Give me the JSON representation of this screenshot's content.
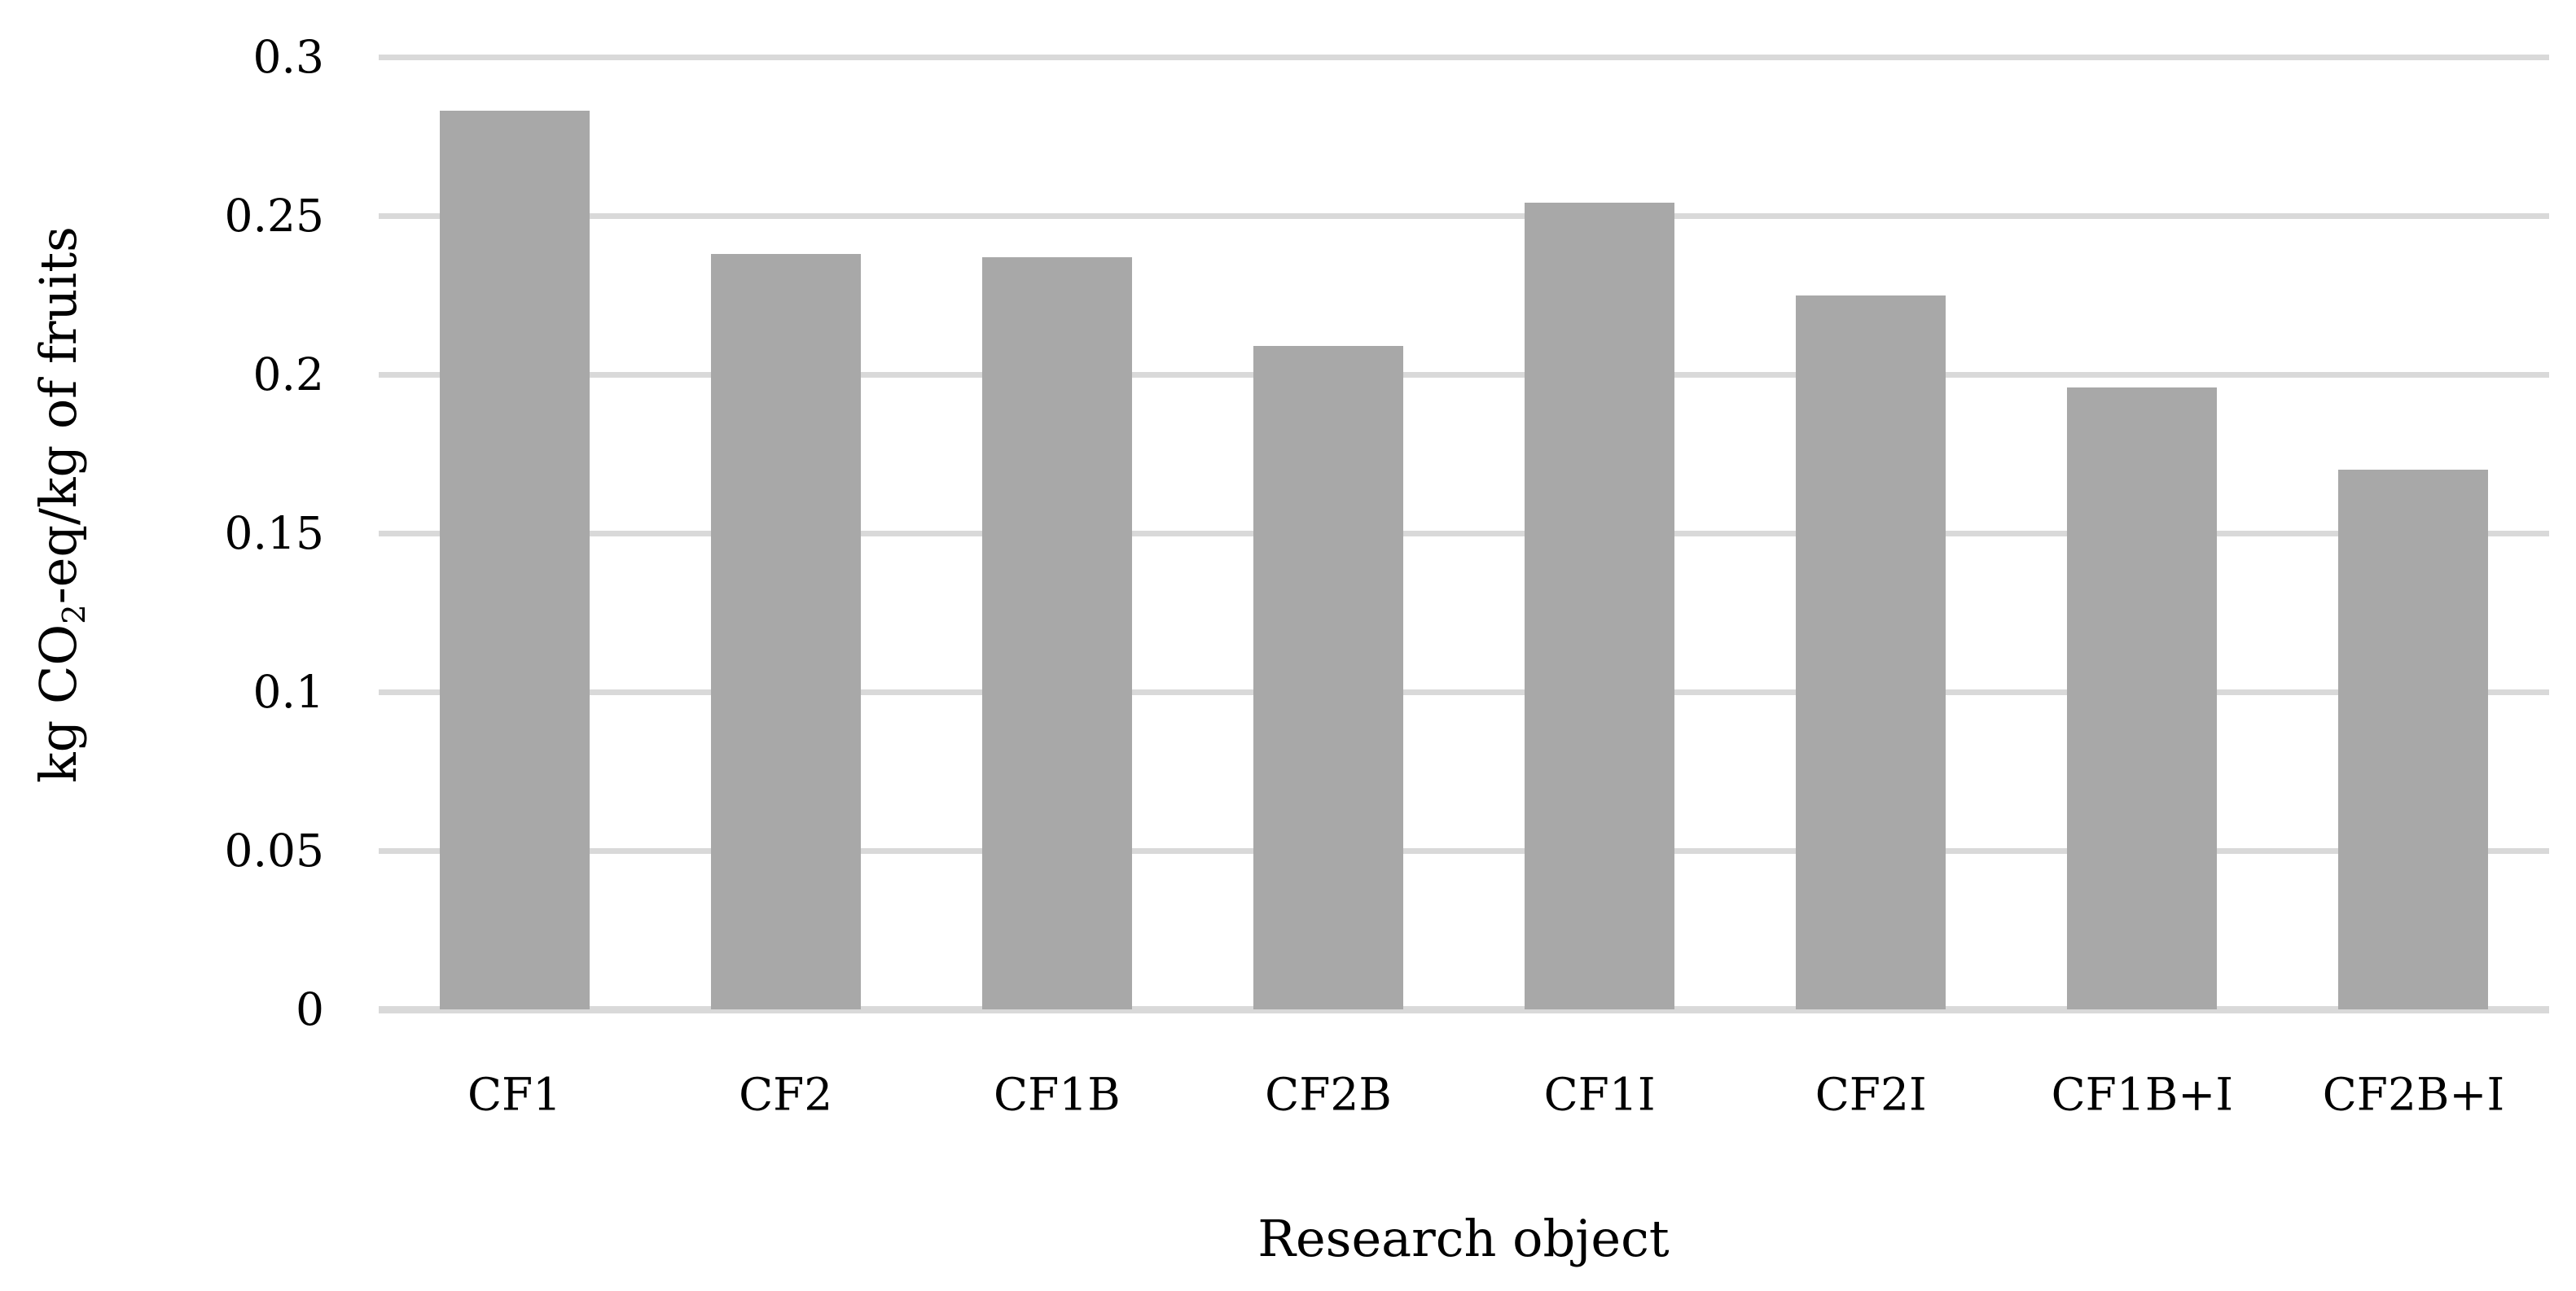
{
  "figure": {
    "background_color": "#ffffff",
    "text_color": "#000000"
  },
  "chart_data": {
    "type": "bar",
    "title": "",
    "categories": [
      "CF1",
      "CF2",
      "CF1B",
      "CF2B",
      "CF1I",
      "CF2I",
      "CF1B+I",
      "CF2B+I"
    ],
    "values": [
      0.283,
      0.238,
      0.237,
      0.209,
      0.254,
      0.225,
      0.196,
      0.17
    ],
    "series_name": "",
    "xlabel": "Research object",
    "ylabel": "kg CO2-eq/kg of fruits",
    "ylabel_parts": {
      "prefix": "kg CO",
      "subscript": "2",
      "suffix": "-eq/kg of fruits"
    },
    "ylim": [
      0,
      0.3
    ],
    "yticks": [
      0,
      0.05,
      0.1,
      0.15,
      0.2,
      0.25,
      0.3
    ],
    "ytick_labels": [
      "0",
      "0.05",
      "0.1",
      "0.15",
      "0.2",
      "0.25",
      "0.3"
    ],
    "grid": true,
    "gridline_orientation": "horizontal",
    "legend": false,
    "bar_color": "#a8a8a8",
    "gridline_color": "#d9d9d9",
    "axis_line_color": "#d9d9d9"
  }
}
